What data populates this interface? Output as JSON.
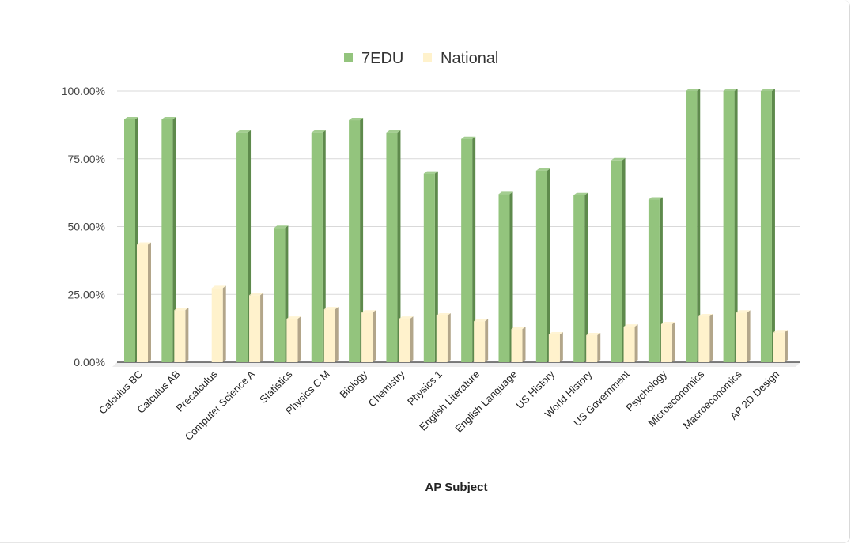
{
  "chart_data": {
    "type": "bar",
    "title": "",
    "xlabel": "AP Subject",
    "ylabel": "",
    "ylim": [
      0,
      100
    ],
    "yticks": [
      "0.00%",
      "25.00%",
      "50.00%",
      "75.00%",
      "100.00%"
    ],
    "ytick_values": [
      0,
      25,
      50,
      75,
      100
    ],
    "grid": true,
    "legend_position": "top-center",
    "categories": [
      "Calculus BC",
      "Calculus AB",
      "Precalculus",
      "Computer Science A",
      "Statistics",
      "Physics C M",
      "Biology",
      "Chemistry",
      "Physics 1",
      "English Literature",
      "English Language",
      "US History",
      "World History",
      "US Government",
      "Psychology",
      "Microeconomics",
      "Macroeconomics",
      "AP 2D Design"
    ],
    "series": [
      {
        "name": "7EDU",
        "color": "#93c47d",
        "side_color": "#5e8a4c",
        "values": [
          89.5,
          89.5,
          null,
          84.6,
          49.5,
          84.6,
          89.2,
          84.6,
          69.5,
          82.3,
          62.0,
          70.6,
          61.6,
          74.4,
          59.9,
          100,
          100,
          100
        ]
      },
      {
        "name": "National",
        "color": "#fff2cc",
        "side_color": "#b3a68a",
        "values": [
          43.3,
          19.2,
          27.3,
          24.7,
          16.0,
          19.5,
          18.3,
          16.0,
          17.2,
          15.1,
          12.2,
          10.2,
          9.9,
          13.1,
          14.0,
          16.9,
          18.3,
          11.0
        ]
      }
    ]
  }
}
